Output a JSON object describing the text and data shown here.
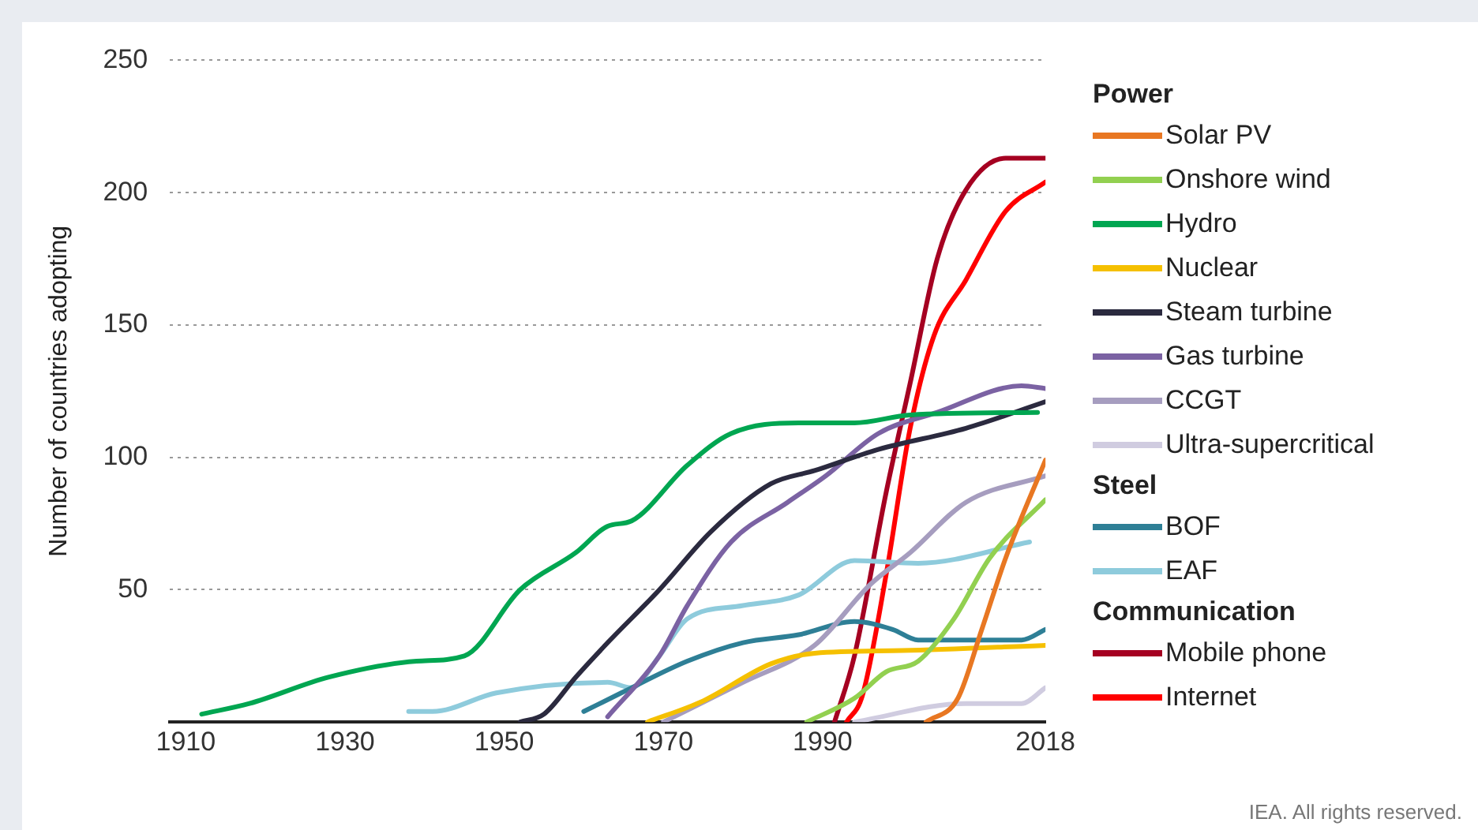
{
  "chart_data": {
    "type": "line",
    "ylabel": "Number of countries adopting",
    "xlim": [
      1908,
      2018
    ],
    "xticks": [
      1910,
      1930,
      1950,
      1970,
      1990,
      2018
    ],
    "ylim": [
      0,
      250
    ],
    "yticks": [
      {
        "value": 0,
        "label": null
      },
      50,
      100,
      150,
      200,
      250
    ],
    "grid": "y",
    "legend": "right",
    "marker": "none",
    "line_style": "solid",
    "annotations": [
      "Power",
      "Steel",
      "Communication",
      "IEA. All rights reserved."
    ],
    "series": [
      {
        "name": "Solar PV",
        "color": "#e87722",
        "x": [
          2003,
          2007,
          2010,
          2013,
          2018
        ],
        "values": [
          0,
          9,
          35,
          62,
          99
        ]
      },
      {
        "name": "Onshore wind",
        "color": "#92d050",
        "x": [
          1988,
          1994,
          1998,
          2002,
          2006.5,
          2011,
          2018
        ],
        "values": [
          0,
          9,
          19,
          23,
          39,
          62,
          84
        ]
      },
      {
        "name": "Hydro",
        "color": "#00a651",
        "x": [
          1912,
          1918,
          1928,
          1939,
          1945,
          1952,
          1959,
          1963,
          1966,
          1973,
          1978.5,
          1987,
          1994,
          2001,
          2017
        ],
        "values": [
          3,
          7,
          17,
          23,
          25,
          50,
          64,
          74,
          76,
          97,
          109,
          113,
          113,
          116,
          117
        ]
      },
      {
        "name": "Nuclear",
        "color": "#f5c000",
        "x": [
          1968,
          1975,
          1983.5,
          1989,
          2000,
          2018
        ],
        "values": [
          0,
          8,
          22,
          26,
          27,
          29
        ]
      },
      {
        "name": "Steam turbine",
        "color": "#2b2a3f",
        "x": [
          1952,
          1955,
          1959,
          1963,
          1969.5,
          1976,
          1983.5,
          1989,
          1997,
          2008,
          2018
        ],
        "values": [
          0,
          3,
          17,
          30,
          50,
          72,
          90,
          95,
          103,
          111,
          121
        ]
      },
      {
        "name": "Gas turbine",
        "color": "#7b62a3",
        "x": [
          1963,
          1969.5,
          1973,
          1978.5,
          1985.6,
          1990.4,
          1997,
          2004.4,
          2015,
          2018
        ],
        "values": [
          2,
          25,
          44,
          68,
          83,
          93,
          109,
          117,
          127,
          126
        ]
      },
      {
        "name": "CCGT",
        "color": "#a69dbf",
        "x": [
          1970,
          1980,
          1989,
          1996,
          2001,
          2008,
          2018
        ],
        "values": [
          0,
          15,
          29,
          52,
          64,
          83,
          93
        ]
      },
      {
        "name": "Ultra-supercritical",
        "color": "#d0cce0",
        "x": [
          1994,
          2008,
          2015,
          2018
        ],
        "values": [
          0,
          7,
          7,
          13
        ]
      },
      {
        "name": "BOF",
        "color": "#2e7f96",
        "x": [
          1960,
          1964.7,
          1973,
          1980,
          1987,
          1994,
          1998.8,
          2002,
          2015,
          2018
        ],
        "values": [
          4,
          11,
          23,
          30,
          33,
          38,
          35,
          31,
          31,
          35
        ]
      },
      {
        "name": "EAF",
        "color": "#8ecbdc",
        "x": [
          1938,
          1941,
          1949,
          1963,
          1966,
          1969.5,
          1973,
          1980,
          1987,
          1994,
          2002,
          2016
        ],
        "values": [
          4,
          4,
          11,
          15,
          13,
          25,
          39,
          44,
          48,
          61,
          60,
          68
        ]
      },
      {
        "name": "Mobile phone",
        "color": "#a50021",
        "x": [
          1991.5,
          1994,
          1998,
          2001,
          2004.4,
          2008,
          2013,
          2018
        ],
        "values": [
          0,
          25,
          87,
          128,
          175,
          201,
          213,
          213
        ]
      },
      {
        "name": "Internet",
        "color": "#ff0000",
        "x": [
          1993,
          1995,
          1998,
          2001,
          2004,
          2008,
          2013,
          2018
        ],
        "values": [
          0,
          10,
          56,
          111,
          146,
          167,
          193,
          204
        ]
      }
    ]
  }
}
